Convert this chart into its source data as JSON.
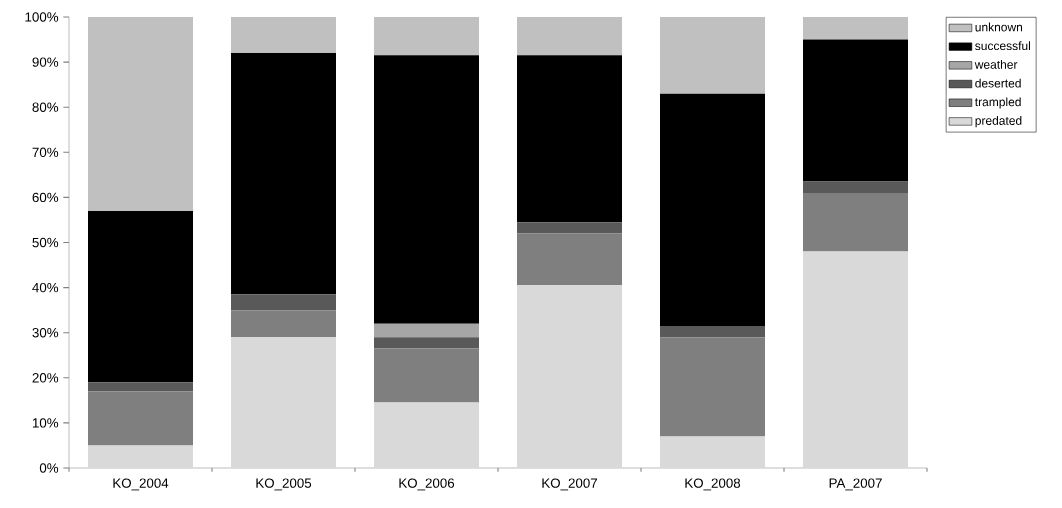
{
  "chart_data": {
    "type": "bar",
    "stacked": true,
    "categories": [
      "KO_2004",
      "KO_2005",
      "KO_2006",
      "KO_2007",
      "KO_2008",
      "PA_2007"
    ],
    "series": [
      {
        "name": "predated",
        "color": "#d9d9d9",
        "values": [
          5,
          29,
          14.5,
          40.5,
          7,
          48
        ]
      },
      {
        "name": "trampled",
        "color": "#7f7f7f",
        "values": [
          12,
          6,
          12,
          11.5,
          22,
          13
        ]
      },
      {
        "name": "deserted",
        "color": "#595959",
        "values": [
          2,
          3.5,
          2.5,
          2.5,
          2.5,
          2.5
        ]
      },
      {
        "name": "weather",
        "color": "#a6a6a6",
        "values": [
          0,
          0,
          3,
          0,
          0,
          0
        ]
      },
      {
        "name": "successful",
        "color": "#000000",
        "values": [
          38,
          53.5,
          59.5,
          37,
          51.5,
          31.5
        ]
      },
      {
        "name": "unknown",
        "color": "#c0c0c0",
        "values": [
          43,
          8,
          8.5,
          8.5,
          17,
          5
        ]
      }
    ],
    "ylim": [
      0,
      100
    ],
    "yticks": [
      {
        "value": 0,
        "label": "0%"
      },
      {
        "value": 10,
        "label": "10%"
      },
      {
        "value": 20,
        "label": "20%"
      },
      {
        "value": 30,
        "label": "30%"
      },
      {
        "value": 40,
        "label": "40%"
      },
      {
        "value": 50,
        "label": "50%"
      },
      {
        "value": 60,
        "label": "60%"
      },
      {
        "value": 70,
        "label": "70%"
      },
      {
        "value": 80,
        "label": "80%"
      },
      {
        "value": 90,
        "label": "90%"
      },
      {
        "value": 100,
        "label": "100%"
      }
    ],
    "legend": "right"
  }
}
